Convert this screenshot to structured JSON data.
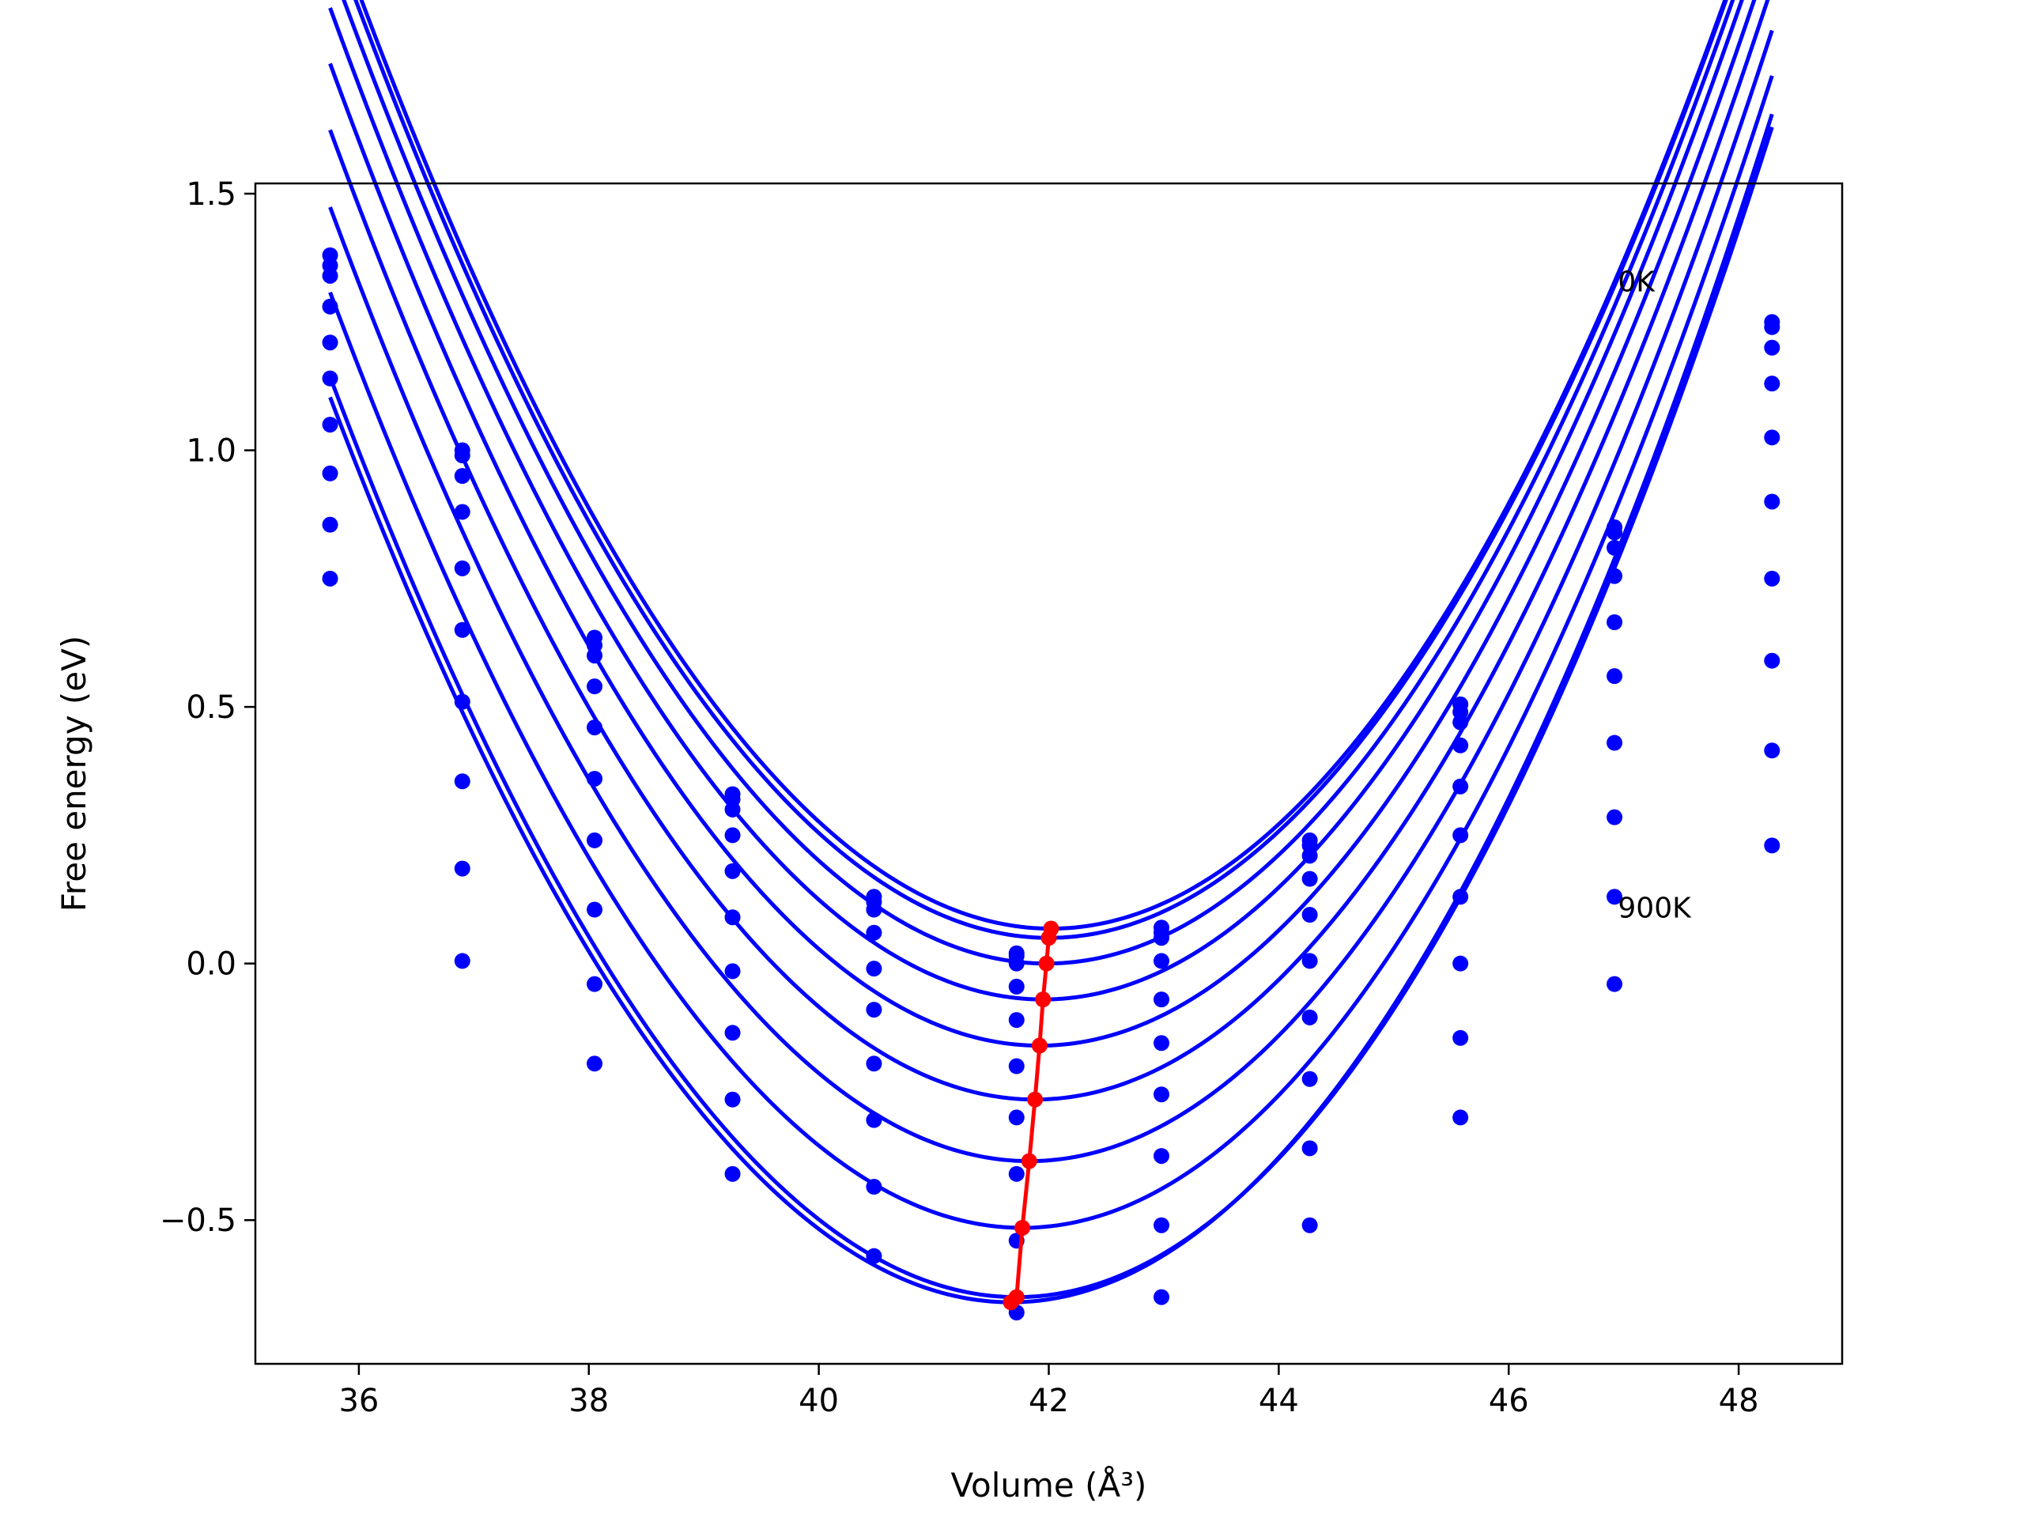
{
  "chart_data": {
    "type": "scatter",
    "xlabel": "Volume (Å³)",
    "ylabel": "Free energy (eV)",
    "xlim": [
      35.1,
      48.9
    ],
    "ylim": [
      -0.78,
      1.52
    ],
    "xticks": [
      36,
      38,
      40,
      42,
      44,
      46,
      48
    ],
    "xtick_labels": [
      "36",
      "38",
      "40",
      "42",
      "44",
      "46",
      "48"
    ],
    "yticks": [
      -0.5,
      0.0,
      0.5,
      1.0,
      1.5
    ],
    "ytick_labels": [
      "−0.5",
      "0.0",
      "0.5",
      "1.0",
      "1.5"
    ],
    "grid": false,
    "line_color": "#0000ff",
    "point_color": "#0000ff",
    "min_path_color": "#ff0000",
    "volumes": [
      35.75,
      36.9,
      38.05,
      39.25,
      40.48,
      41.72,
      42.98,
      44.27,
      45.58,
      46.92,
      48.29
    ],
    "annotations": [
      {
        "text": "0K",
        "x": 46.95,
        "y": 1.31
      },
      {
        "text": "900K",
        "x": 46.95,
        "y": 0.09
      }
    ],
    "series": [
      {
        "values": [
          1.38,
          1.0,
          0.635,
          0.33,
          0.13,
          0.02,
          0.07,
          0.24,
          0.505,
          0.85,
          1.25
        ],
        "fit": {
          "v0": 42.02,
          "e0": 0.068,
          "curvature": 0.0515,
          "cubic": 0.0002,
          "x_range": [
            35.75,
            48.29
          ]
        }
      },
      {
        "values": [
          1.36,
          0.99,
          0.62,
          0.32,
          0.12,
          0.015,
          0.06,
          0.23,
          0.49,
          0.84,
          1.24
        ],
        "fit": {
          "v0": 42.0,
          "e0": 0.05,
          "curvature": 0.0515,
          "cubic": 0.0002,
          "x_range": [
            35.75,
            48.29
          ]
        }
      },
      {
        "values": [
          1.34,
          0.95,
          0.6,
          0.3,
          0.105,
          0.0,
          0.05,
          0.21,
          0.47,
          0.81,
          1.2
        ],
        "fit": {
          "v0": 41.98,
          "e0": 0.0,
          "curvature": 0.0515,
          "cubic": 0.0002,
          "x_range": [
            35.75,
            48.29
          ]
        }
      },
      {
        "values": [
          1.28,
          0.88,
          0.54,
          0.25,
          0.06,
          -0.045,
          0.005,
          0.165,
          0.425,
          0.755,
          1.13
        ],
        "fit": {
          "v0": 41.95,
          "e0": -0.07,
          "curvature": 0.0515,
          "cubic": 0.0002,
          "x_range": [
            35.75,
            48.29
          ]
        }
      },
      {
        "values": [
          1.21,
          0.77,
          0.46,
          0.18,
          -0.01,
          -0.11,
          -0.07,
          0.095,
          0.345,
          0.665,
          1.025
        ],
        "fit": {
          "v0": 41.92,
          "e0": -0.16,
          "curvature": 0.0515,
          "cubic": 0.0002,
          "x_range": [
            35.75,
            48.29
          ]
        }
      },
      {
        "values": [
          1.14,
          0.65,
          0.36,
          0.09,
          -0.09,
          -0.2,
          -0.155,
          0.005,
          0.25,
          0.56,
          0.9
        ],
        "fit": {
          "v0": 41.88,
          "e0": -0.265,
          "curvature": 0.0515,
          "cubic": 0.0002,
          "x_range": [
            35.75,
            48.29
          ]
        }
      },
      {
        "values": [
          1.05,
          0.51,
          0.24,
          -0.015,
          -0.195,
          -0.3,
          -0.255,
          -0.105,
          0.13,
          0.43,
          0.75
        ],
        "fit": {
          "v0": 41.83,
          "e0": -0.385,
          "curvature": 0.0515,
          "cubic": 0.0002,
          "x_range": [
            35.75,
            48.29
          ]
        }
      },
      {
        "values": [
          0.955,
          0.355,
          0.105,
          -0.135,
          -0.305,
          -0.41,
          -0.375,
          -0.225,
          0.0,
          0.285,
          0.59
        ],
        "fit": {
          "v0": 41.77,
          "e0": -0.515,
          "curvature": 0.0515,
          "cubic": 0.0002,
          "x_range": [
            35.75,
            48.29
          ]
        }
      },
      {
        "values": [
          0.855,
          0.185,
          -0.04,
          -0.265,
          -0.435,
          -0.54,
          -0.51,
          -0.36,
          -0.145,
          0.13,
          0.415
        ],
        "fit": {
          "v0": 41.72,
          "e0": -0.65,
          "curvature": 0.0515,
          "cubic": 0.0002,
          "x_range": [
            35.75,
            48.29
          ]
        }
      },
      {
        "values": [
          0.75,
          0.005,
          -0.195,
          -0.41,
          -0.57,
          -0.68,
          -0.65,
          -0.51,
          -0.3,
          -0.04,
          0.23
        ],
        "fit": {
          "v0": 41.67,
          "e0": -0.66,
          "curvature": 0.0515,
          "cubic": 0.0002,
          "x_range": [
            35.75,
            48.29
          ]
        }
      }
    ],
    "min_path": {
      "x": [
        42.02,
        42.0,
        41.98,
        41.95,
        41.92,
        41.88,
        41.83,
        41.77,
        41.72,
        41.67
      ],
      "y": [
        0.068,
        0.05,
        0.0,
        -0.07,
        -0.16,
        -0.265,
        -0.385,
        -0.515,
        -0.65,
        -0.66
      ]
    }
  }
}
